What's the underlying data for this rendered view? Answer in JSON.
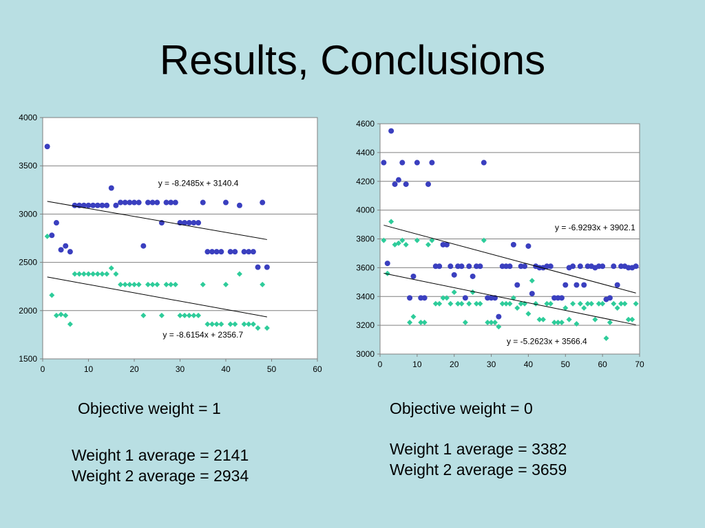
{
  "slide": {
    "title": "Results, Conclusions"
  },
  "captions": {
    "left_title": "Objective weight = 1",
    "left_w1": "Weight 1 average = 2141",
    "left_w2": "Weight 2 average = 2934",
    "right_title": "Objective weight = 0",
    "right_w1": "Weight 1 average = 3382",
    "right_w2": "Weight 2 average = 3659"
  },
  "colors": {
    "series_circle": "#3a3fbf",
    "series_diamond": "#2ecc9a",
    "trendline": "#000000",
    "plot_bg": "#ffffff",
    "gridline": "#7f7f7f"
  },
  "chart_data": [
    {
      "type": "scatter",
      "title": "",
      "xlabel": "",
      "ylabel": "",
      "xlim": [
        0,
        60
      ],
      "ylim": [
        1500,
        4000
      ],
      "xticks": [
        0,
        10,
        20,
        30,
        40,
        50,
        60
      ],
      "yticks": [
        1500,
        2000,
        2500,
        3000,
        3500,
        4000
      ],
      "grid": "horizontal",
      "legend": "none",
      "series": [
        {
          "marker": "circle",
          "points": [
            [
              1,
              3700
            ],
            [
              2,
              2780
            ],
            [
              3,
              2910
            ],
            [
              4,
              2630
            ],
            [
              5,
              2670
            ],
            [
              6,
              2610
            ],
            [
              7,
              3090
            ],
            [
              8,
              3090
            ],
            [
              9,
              3090
            ],
            [
              10,
              3090
            ],
            [
              11,
              3090
            ],
            [
              12,
              3090
            ],
            [
              13,
              3090
            ],
            [
              14,
              3090
            ],
            [
              15,
              3270
            ],
            [
              16,
              3090
            ],
            [
              17,
              3120
            ],
            [
              18,
              3120
            ],
            [
              19,
              3120
            ],
            [
              20,
              3120
            ],
            [
              21,
              3120
            ],
            [
              22,
              2670
            ],
            [
              23,
              3120
            ],
            [
              24,
              3120
            ],
            [
              25,
              3120
            ],
            [
              26,
              2910
            ],
            [
              27,
              3120
            ],
            [
              28,
              3120
            ],
            [
              29,
              3120
            ],
            [
              30,
              2910
            ],
            [
              31,
              2910
            ],
            [
              32,
              2910
            ],
            [
              33,
              2910
            ],
            [
              34,
              2910
            ],
            [
              35,
              3120
            ],
            [
              36,
              2610
            ],
            [
              37,
              2610
            ],
            [
              38,
              2610
            ],
            [
              39,
              2610
            ],
            [
              40,
              3120
            ],
            [
              41,
              2610
            ],
            [
              42,
              2610
            ],
            [
              43,
              3090
            ],
            [
              44,
              2610
            ],
            [
              45,
              2610
            ],
            [
              46,
              2610
            ],
            [
              47,
              2450
            ],
            [
              48,
              3120
            ],
            [
              49,
              2450
            ]
          ]
        },
        {
          "marker": "diamond",
          "points": [
            [
              1,
              2770
            ],
            [
              2,
              2160
            ],
            [
              3,
              1950
            ],
            [
              4,
              1960
            ],
            [
              5,
              1950
            ],
            [
              6,
              1860
            ],
            [
              7,
              2380
            ],
            [
              8,
              2380
            ],
            [
              9,
              2380
            ],
            [
              10,
              2380
            ],
            [
              11,
              2380
            ],
            [
              12,
              2380
            ],
            [
              13,
              2380
            ],
            [
              14,
              2380
            ],
            [
              15,
              2440
            ],
            [
              16,
              2380
            ],
            [
              17,
              2270
            ],
            [
              18,
              2270
            ],
            [
              19,
              2270
            ],
            [
              20,
              2270
            ],
            [
              21,
              2270
            ],
            [
              22,
              1950
            ],
            [
              23,
              2270
            ],
            [
              24,
              2270
            ],
            [
              25,
              2270
            ],
            [
              26,
              1950
            ],
            [
              27,
              2270
            ],
            [
              28,
              2270
            ],
            [
              29,
              2270
            ],
            [
              30,
              1950
            ],
            [
              31,
              1950
            ],
            [
              32,
              1950
            ],
            [
              33,
              1950
            ],
            [
              34,
              1950
            ],
            [
              35,
              2270
            ],
            [
              36,
              1860
            ],
            [
              37,
              1860
            ],
            [
              38,
              1860
            ],
            [
              39,
              1860
            ],
            [
              40,
              2270
            ],
            [
              41,
              1860
            ],
            [
              42,
              1860
            ],
            [
              43,
              2380
            ],
            [
              44,
              1860
            ],
            [
              45,
              1860
            ],
            [
              46,
              1860
            ],
            [
              47,
              1820
            ],
            [
              48,
              2270
            ],
            [
              49,
              1820
            ]
          ]
        }
      ],
      "trendlines": [
        {
          "label": "y = -8.2485x + 3140.4",
          "slope": -8.2485,
          "intercept": 3140.4,
          "x_range": [
            1,
            49
          ],
          "label_at": [
            34,
            3290
          ]
        },
        {
          "label": "y = -8.6154x + 2356.7",
          "slope": -8.6154,
          "intercept": 2356.7,
          "x_range": [
            1,
            49
          ],
          "label_at": [
            35,
            1720
          ]
        }
      ]
    },
    {
      "type": "scatter",
      "title": "",
      "xlabel": "",
      "ylabel": "",
      "xlim": [
        0,
        70
      ],
      "ylim": [
        3000,
        4600
      ],
      "xticks": [
        0,
        10,
        20,
        30,
        40,
        50,
        60,
        70
      ],
      "yticks": [
        3000,
        3200,
        3400,
        3600,
        3800,
        4000,
        4200,
        4400,
        4600
      ],
      "grid": "horizontal",
      "legend": "none",
      "series": [
        {
          "marker": "circle",
          "points": [
            [
              1,
              4330
            ],
            [
              2,
              3630
            ],
            [
              3,
              4550
            ],
            [
              4,
              4180
            ],
            [
              5,
              4210
            ],
            [
              6,
              4330
            ],
            [
              7,
              4180
            ],
            [
              8,
              3390
            ],
            [
              9,
              3540
            ],
            [
              10,
              4330
            ],
            [
              11,
              3390
            ],
            [
              12,
              3390
            ],
            [
              13,
              4180
            ],
            [
              14,
              4330
            ],
            [
              15,
              3610
            ],
            [
              16,
              3610
            ],
            [
              17,
              3760
            ],
            [
              18,
              3760
            ],
            [
              19,
              3610
            ],
            [
              20,
              3550
            ],
            [
              21,
              3610
            ],
            [
              22,
              3610
            ],
            [
              23,
              3390
            ],
            [
              24,
              3610
            ],
            [
              25,
              3540
            ],
            [
              26,
              3610
            ],
            [
              27,
              3610
            ],
            [
              28,
              4330
            ],
            [
              29,
              3390
            ],
            [
              30,
              3390
            ],
            [
              31,
              3390
            ],
            [
              32,
              3260
            ],
            [
              33,
              3610
            ],
            [
              34,
              3610
            ],
            [
              35,
              3610
            ],
            [
              36,
              3760
            ],
            [
              37,
              3480
            ],
            [
              38,
              3610
            ],
            [
              39,
              3610
            ],
            [
              40,
              3750
            ],
            [
              41,
              3420
            ],
            [
              42,
              3610
            ],
            [
              43,
              3600
            ],
            [
              44,
              3600
            ],
            [
              45,
              3610
            ],
            [
              46,
              3610
            ],
            [
              47,
              3390
            ],
            [
              48,
              3390
            ],
            [
              49,
              3390
            ],
            [
              50,
              3480
            ],
            [
              51,
              3600
            ],
            [
              52,
              3610
            ],
            [
              53,
              3480
            ],
            [
              54,
              3610
            ],
            [
              55,
              3480
            ],
            [
              56,
              3610
            ],
            [
              57,
              3610
            ],
            [
              58,
              3600
            ],
            [
              59,
              3610
            ],
            [
              60,
              3610
            ],
            [
              61,
              3380
            ],
            [
              62,
              3390
            ],
            [
              63,
              3610
            ],
            [
              64,
              3480
            ],
            [
              65,
              3610
            ],
            [
              66,
              3610
            ],
            [
              67,
              3600
            ],
            [
              68,
              3600
            ],
            [
              69,
              3610
            ]
          ]
        },
        {
          "marker": "diamond",
          "points": [
            [
              1,
              3790
            ],
            [
              2,
              3560
            ],
            [
              3,
              3920
            ],
            [
              4,
              3760
            ],
            [
              5,
              3770
            ],
            [
              6,
              3790
            ],
            [
              7,
              3760
            ],
            [
              8,
              3220
            ],
            [
              9,
              3260
            ],
            [
              10,
              3790
            ],
            [
              11,
              3220
            ],
            [
              12,
              3220
            ],
            [
              13,
              3760
            ],
            [
              14,
              3790
            ],
            [
              15,
              3350
            ],
            [
              16,
              3350
            ],
            [
              17,
              3390
            ],
            [
              18,
              3390
            ],
            [
              19,
              3350
            ],
            [
              20,
              3430
            ],
            [
              21,
              3350
            ],
            [
              22,
              3350
            ],
            [
              23,
              3220
            ],
            [
              24,
              3350
            ],
            [
              25,
              3430
            ],
            [
              26,
              3350
            ],
            [
              27,
              3350
            ],
            [
              28,
              3790
            ],
            [
              29,
              3220
            ],
            [
              30,
              3220
            ],
            [
              31,
              3220
            ],
            [
              32,
              3190
            ],
            [
              33,
              3350
            ],
            [
              34,
              3350
            ],
            [
              35,
              3350
            ],
            [
              36,
              3390
            ],
            [
              37,
              3320
            ],
            [
              38,
              3350
            ],
            [
              39,
              3350
            ],
            [
              40,
              3280
            ],
            [
              41,
              3510
            ],
            [
              42,
              3350
            ],
            [
              43,
              3240
            ],
            [
              44,
              3240
            ],
            [
              45,
              3350
            ],
            [
              46,
              3350
            ],
            [
              47,
              3220
            ],
            [
              48,
              3220
            ],
            [
              49,
              3220
            ],
            [
              50,
              3320
            ],
            [
              51,
              3240
            ],
            [
              52,
              3350
            ],
            [
              53,
              3210
            ],
            [
              54,
              3350
            ],
            [
              55,
              3320
            ],
            [
              56,
              3350
            ],
            [
              57,
              3350
            ],
            [
              58,
              3240
            ],
            [
              59,
              3350
            ],
            [
              60,
              3350
            ],
            [
              61,
              3110
            ],
            [
              62,
              3220
            ],
            [
              63,
              3350
            ],
            [
              64,
              3320
            ],
            [
              65,
              3350
            ],
            [
              66,
              3350
            ],
            [
              67,
              3240
            ],
            [
              68,
              3240
            ],
            [
              69,
              3350
            ]
          ]
        }
      ],
      "trendlines": [
        {
          "label": "y = -6.9293x + 3902.1",
          "slope": -6.9293,
          "intercept": 3902.1,
          "x_range": [
            1,
            69
          ],
          "label_at": [
            58,
            3860
          ]
        },
        {
          "label": "y = -5.2623x + 3566.4",
          "slope": -5.2623,
          "intercept": 3566.4,
          "x_range": [
            1,
            69
          ],
          "label_at": [
            45,
            3070
          ]
        }
      ]
    }
  ]
}
